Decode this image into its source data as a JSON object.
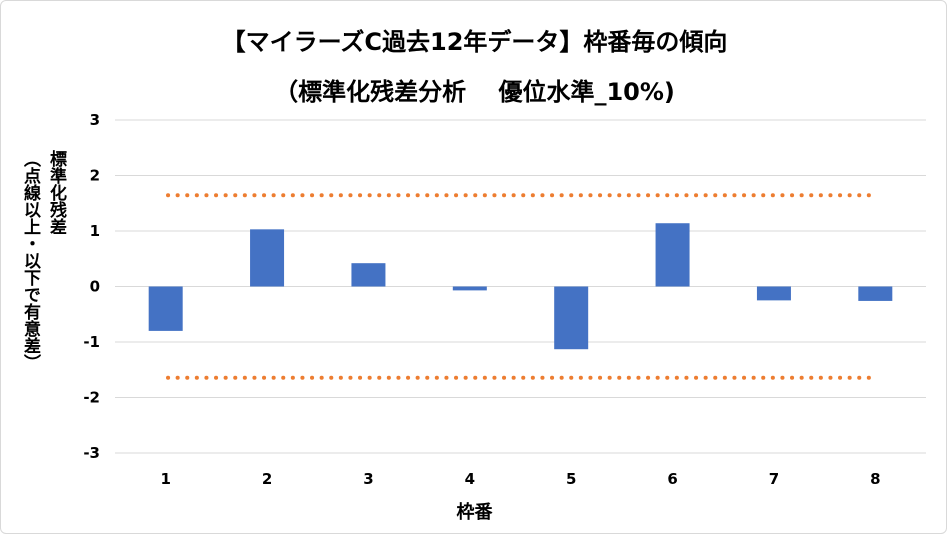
{
  "chart_data": {
    "type": "bar",
    "title": "【マイラーズC過去12年データ】枠番毎の傾向",
    "subtitle": "（標準化残差分析　 優位水準_10%)",
    "ylabel_line1": "標準化残差",
    "ylabel_line2": "（点線以上・以下で有意差）",
    "xlabel": "枠番",
    "categories": [
      "1",
      "2",
      "3",
      "4",
      "5",
      "6",
      "7",
      "8"
    ],
    "values": [
      -0.8,
      1.03,
      0.42,
      -0.07,
      -1.13,
      1.14,
      -0.25,
      -0.26
    ],
    "ylim": [
      -3,
      3
    ],
    "yticks": [
      3,
      2,
      1,
      0,
      -1,
      -2,
      -3
    ],
    "threshold_upper": 1.645,
    "threshold_lower": -1.645,
    "grid": true,
    "colors": {
      "bar": "#4472c4",
      "threshold": "#ed7d31",
      "grid": "#d9d9d9"
    }
  }
}
